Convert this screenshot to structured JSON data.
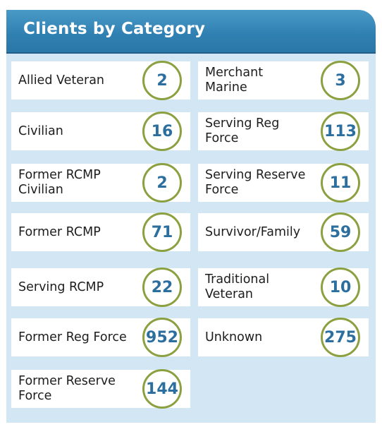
{
  "title": "Clients by Category",
  "items": [
    {
      "label": "Allied Veteran",
      "value": "2"
    },
    {
      "label": "Merchant Marine",
      "value": "3"
    },
    {
      "label": "Civilian",
      "value": "16"
    },
    {
      "label": "Serving Reg Force",
      "value": "113"
    },
    {
      "label": "Former RCMP Civilian",
      "value": "2"
    },
    {
      "label": "Serving Reserve Force",
      "value": "11"
    },
    {
      "label": "Former RCMP",
      "value": "71"
    },
    {
      "label": "Survivor/Family",
      "value": "59"
    },
    {
      "label": "Serving RCMP",
      "value": "22"
    },
    {
      "label": "Traditional Veteran",
      "value": "10"
    },
    {
      "label": "Former Reg Force",
      "value": "952"
    },
    {
      "label": "Unknown",
      "value": "275"
    },
    {
      "label": "Former Reserve Force",
      "value": "144"
    }
  ],
  "colors": {
    "header": "#2f80b2",
    "ring": "#8ba040",
    "number": "#2c6f9f",
    "panel": "#d3e6f3"
  }
}
